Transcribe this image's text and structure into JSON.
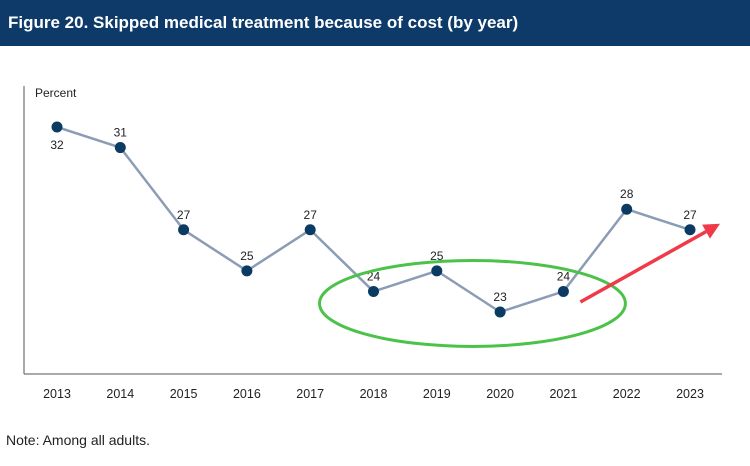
{
  "header": {
    "title": "Figure 20. Skipped medical treatment because of cost (by year)"
  },
  "note": "Note: Among all adults.",
  "colors": {
    "banner": "#0e3a6a",
    "line": "#8a9db5",
    "marker": "#0b3a63",
    "ellipse": "#4cc24a",
    "arrow": "#f03a4a"
  },
  "chart_data": {
    "type": "line",
    "title": "Skipped medical treatment because of cost (by year)",
    "ylabel": "Percent",
    "xlabel": "",
    "ylim": [
      17,
      34
    ],
    "categories": [
      "2013",
      "2014",
      "2015",
      "2016",
      "2017",
      "2018",
      "2019",
      "2020",
      "2021",
      "2022",
      "2023"
    ],
    "series": [
      {
        "name": "Skipped medical treatment because of cost",
        "values": [
          32,
          31,
          27,
          25,
          27,
          24,
          25,
          23,
          24,
          28,
          27
        ],
        "labels": [
          "32",
          "31",
          "27",
          "25",
          "27",
          "24",
          "25",
          "23",
          "24",
          "28",
          "27"
        ]
      }
    ],
    "annotations": [
      {
        "type": "ellipse",
        "around": [
          "2018",
          "2021"
        ]
      },
      {
        "type": "arrow",
        "from": "2021",
        "to": "2023",
        "direction": "up"
      }
    ]
  }
}
